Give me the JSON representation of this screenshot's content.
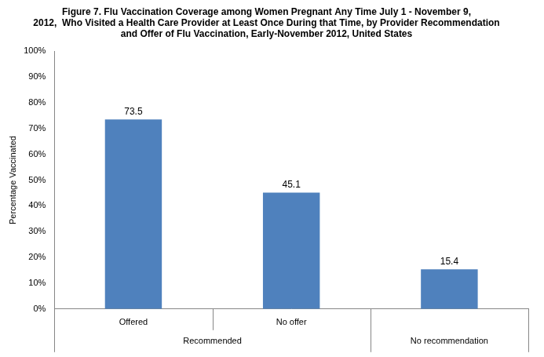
{
  "chart_data": {
    "type": "bar",
    "title": [
      "Figure 7. Flu Vaccination Coverage among Women Pregnant Any Time July 1 - November 9,",
      "2012,  Who Visited a Health Care Provider at Least Once During that Time, by Provider Recommendation",
      "and Offer of Flu Vaccination, Early-November 2012, United States"
    ],
    "y_label": "Percentage Vaccinated",
    "categories": [
      "Offered",
      "No offer",
      null
    ],
    "category_groups": [
      "Recommended",
      "Recommended",
      "No recommendation"
    ],
    "values": [
      73.5,
      45.1,
      15.4
    ],
    "color": "#4f81bd",
    "ylim": [
      0,
      100
    ],
    "yticks": [
      {
        "value": 0,
        "label": "0%"
      },
      {
        "value": 10,
        "label": "10%"
      },
      {
        "value": 20,
        "label": "20%"
      },
      {
        "value": 30,
        "label": "30%"
      },
      {
        "value": 40,
        "label": "40%"
      },
      {
        "value": 50,
        "label": "50%"
      },
      {
        "value": 60,
        "label": "60%"
      },
      {
        "value": 70,
        "label": "70%"
      },
      {
        "value": 80,
        "label": "80%"
      },
      {
        "value": 90,
        "label": "90%"
      },
      {
        "value": 100,
        "label": "100%"
      }
    ],
    "grid": false,
    "data_labels": true
  }
}
